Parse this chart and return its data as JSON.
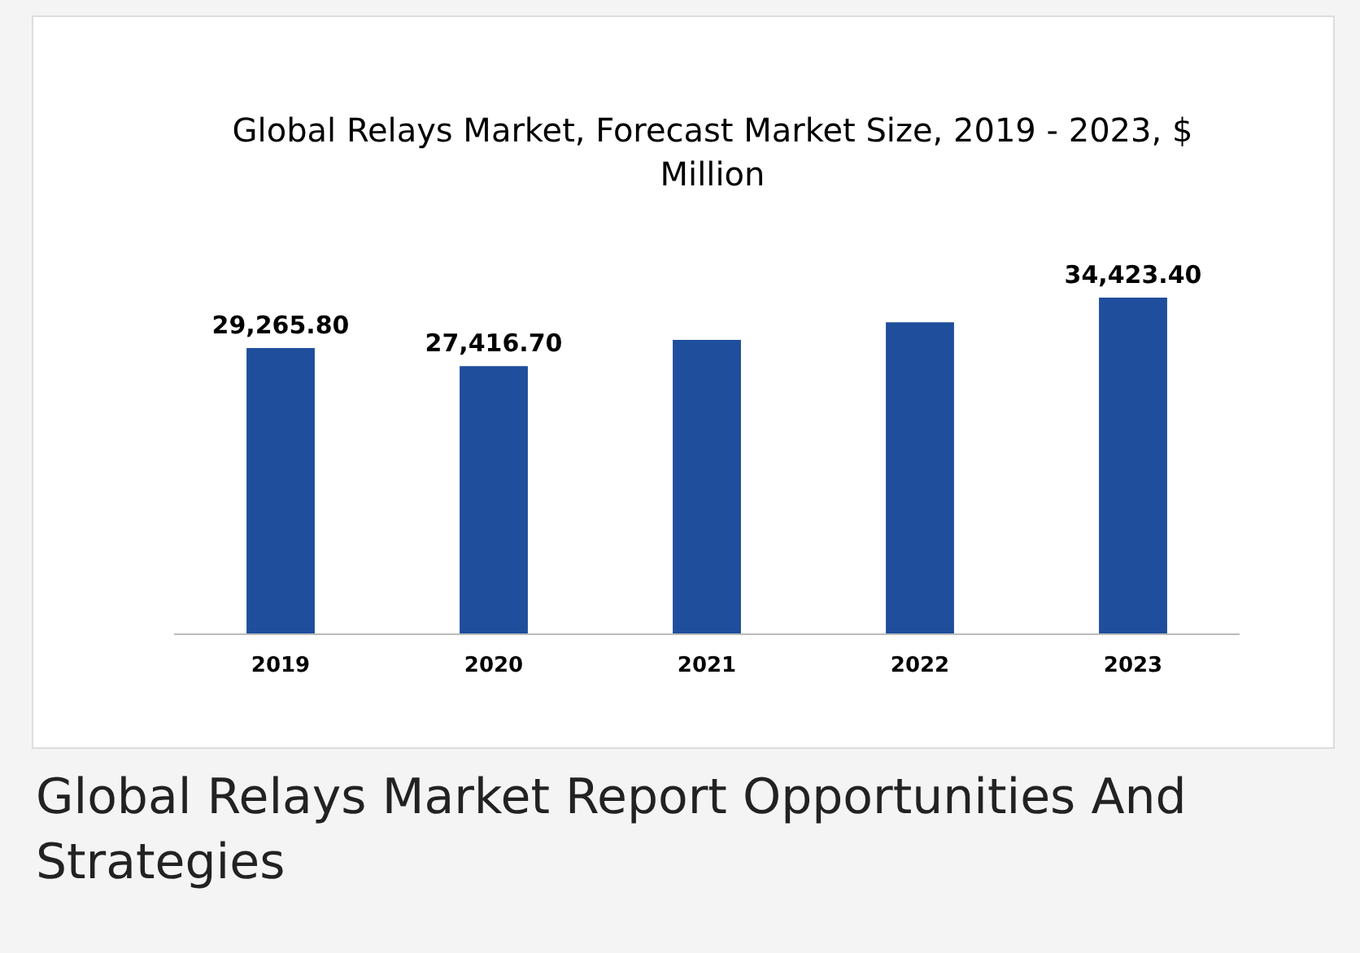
{
  "chart_data": {
    "type": "bar",
    "title": "Global Relays Market, Forecast Market Size, 2019 - 2023, $ Million",
    "categories": [
      "2019",
      "2020",
      "2021",
      "2022",
      "2023"
    ],
    "values": [
      29265.8,
      27416.7,
      30100,
      31900,
      34423.4
    ],
    "value_labels": [
      "29,265.80",
      "27,416.70",
      null,
      null,
      "34,423.40"
    ],
    "color": "#1f4e9c",
    "annotations": [
      "Global Relays Market Report Opportunities And Strategies"
    ]
  }
}
